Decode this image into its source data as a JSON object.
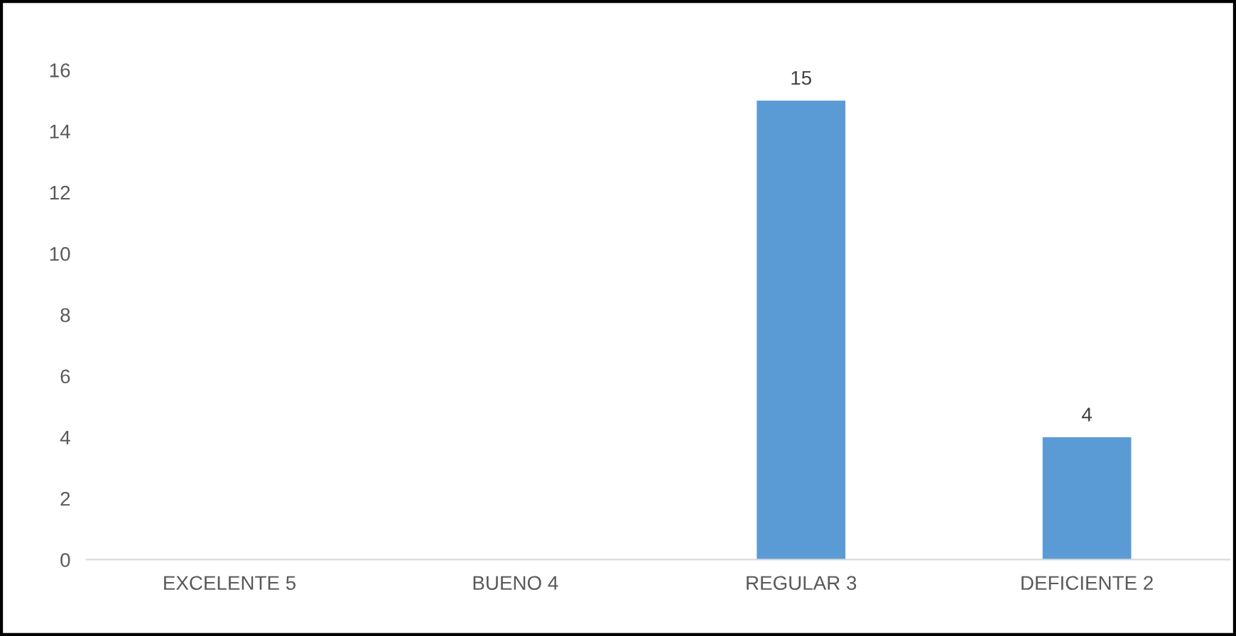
{
  "chart_data": {
    "type": "bar",
    "categories": [
      "EXCELENTE 5",
      "BUENO 4",
      "REGULAR 3",
      "DEFICIENTE 2"
    ],
    "values": [
      0,
      0,
      15,
      4
    ],
    "value_labels": [
      null,
      null,
      "15",
      "4"
    ],
    "color": "#5b9bd5",
    "ylim": [
      0,
      16
    ],
    "yticks": [
      0,
      2,
      4,
      6,
      8,
      10,
      12,
      14,
      16
    ],
    "grid": false,
    "legend": false
  }
}
